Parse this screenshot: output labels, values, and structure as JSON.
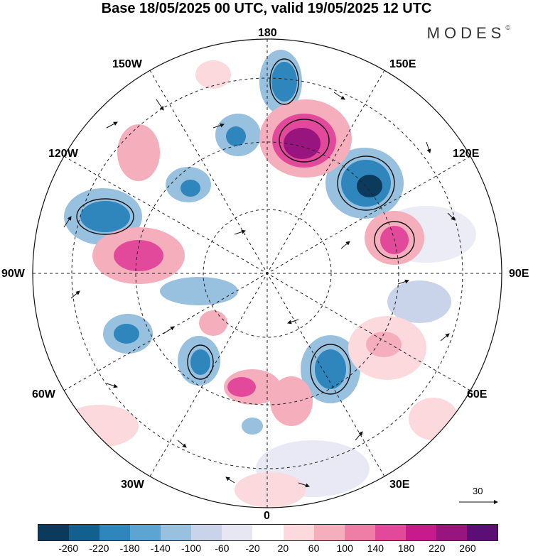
{
  "title": "Base 18/05/2025 00 UTC, valid 19/05/2025 12 UTC",
  "brand": "MODES",
  "brand_mark": "©",
  "longitudes": {
    "n": "180",
    "s": "0",
    "w": "90W",
    "e": "90E",
    "nw1": "150W",
    "nw2": "120W",
    "ne1": "150E",
    "ne2": "120E",
    "sw1": "60W",
    "sw2": "30W",
    "se1": "60E",
    "se2": "30E"
  },
  "reference_vector": "30",
  "colorbar": {
    "colors": [
      "#0c3a5c",
      "#12608e",
      "#2f86bd",
      "#5ca4d1",
      "#98c0df",
      "#c9d4ea",
      "#e6e7f3",
      "#ffffff",
      "#fbd9dd",
      "#f5aebb",
      "#ef7ea6",
      "#e3499a",
      "#c61a8d",
      "#98157f",
      "#5b0f74"
    ],
    "labels": [
      "-260",
      "-220",
      "-180",
      "-140",
      "-100",
      "-60",
      "-20",
      "20",
      "60",
      "100",
      "140",
      "180",
      "220",
      "260"
    ]
  }
}
